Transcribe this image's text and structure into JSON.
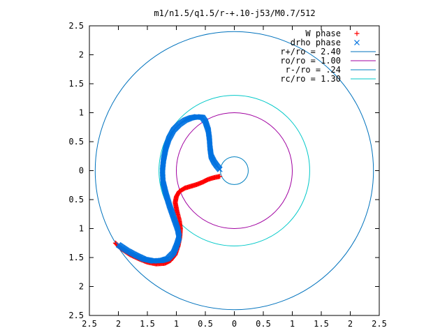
{
  "chart_data": {
    "type": "scatter",
    "title": "m1/n1.5/q1.5/r-+.10-j53/M0.7/512",
    "xlabel": "",
    "ylabel": "",
    "xlim": [
      -2.5,
      2.5
    ],
    "ylim": [
      -2.5,
      2.5
    ],
    "grid": false,
    "legend_position": "top-right",
    "x_ticks": [
      "2.5",
      "2",
      "1.5",
      "1",
      "0.5",
      "0",
      "0.5",
      "1",
      "1.5",
      "2",
      "2.5"
    ],
    "y_ticks": [
      "2.5",
      "2",
      "1.5",
      "1",
      "0.5",
      "0",
      "0.5",
      "1",
      "1.5",
      "2",
      "2.5"
    ],
    "series": [
      {
        "name": "W phase",
        "marker": "+",
        "color": "#ff0000",
        "points": [
          [
            -0.25,
            -0.1
          ],
          [
            -0.35,
            -0.12
          ],
          [
            -0.45,
            -0.15
          ],
          [
            -0.55,
            -0.2
          ],
          [
            -0.65,
            -0.24
          ],
          [
            -0.75,
            -0.27
          ],
          [
            -0.85,
            -0.3
          ],
          [
            -0.95,
            -0.36
          ],
          [
            -1.0,
            -0.45
          ],
          [
            -1.02,
            -0.55
          ],
          [
            -0.99,
            -0.7
          ],
          [
            -0.95,
            -0.85
          ],
          [
            -0.93,
            -1.0
          ],
          [
            -0.94,
            -1.15
          ],
          [
            -0.97,
            -1.3
          ],
          [
            -1.02,
            -1.45
          ],
          [
            -1.1,
            -1.55
          ],
          [
            -1.2,
            -1.6
          ],
          [
            -1.35,
            -1.61
          ],
          [
            -1.5,
            -1.58
          ],
          [
            -1.65,
            -1.52
          ],
          [
            -1.8,
            -1.45
          ],
          [
            -1.95,
            -1.35
          ],
          [
            -2.05,
            -1.25
          ]
        ]
      },
      {
        "name": "drho phase",
        "marker": "x",
        "color": "#0072e0",
        "points": [
          [
            -0.25,
            0.02
          ],
          [
            -0.3,
            0.08
          ],
          [
            -0.35,
            0.15
          ],
          [
            -0.4,
            0.25
          ],
          [
            -0.42,
            0.4
          ],
          [
            -0.43,
            0.55
          ],
          [
            -0.45,
            0.7
          ],
          [
            -0.5,
            0.85
          ],
          [
            -0.55,
            0.92
          ],
          [
            -0.65,
            0.93
          ],
          [
            -0.75,
            0.91
          ],
          [
            -0.85,
            0.87
          ],
          [
            -0.95,
            0.8
          ],
          [
            -1.05,
            0.7
          ],
          [
            -1.13,
            0.55
          ],
          [
            -1.18,
            0.4
          ],
          [
            -1.22,
            0.2
          ],
          [
            -1.24,
            0.0
          ],
          [
            -1.23,
            -0.2
          ],
          [
            -1.18,
            -0.4
          ],
          [
            -1.12,
            -0.6
          ],
          [
            -1.05,
            -0.8
          ],
          [
            -0.98,
            -1.0
          ],
          [
            -0.95,
            -1.15
          ],
          [
            -1.0,
            -1.3
          ],
          [
            -1.05,
            -1.42
          ],
          [
            -1.15,
            -1.52
          ],
          [
            -1.25,
            -1.55
          ],
          [
            -1.4,
            -1.56
          ],
          [
            -1.55,
            -1.53
          ],
          [
            -1.7,
            -1.46
          ],
          [
            -1.85,
            -1.38
          ],
          [
            -2.0,
            -1.28
          ]
        ]
      }
    ],
    "circles": [
      {
        "name": "r+/ro = 2.40",
        "r": 2.4,
        "color": "#0072bd"
      },
      {
        "name": "ro/ro = 1.00",
        "r": 1.0,
        "color": "#a000a0"
      },
      {
        "name": "r-/ro = .24",
        "r": 0.24,
        "color": "#0080c0"
      },
      {
        "name": "rc/ro = 1.30",
        "r": 1.3,
        "color": "#00c8c8"
      }
    ]
  }
}
